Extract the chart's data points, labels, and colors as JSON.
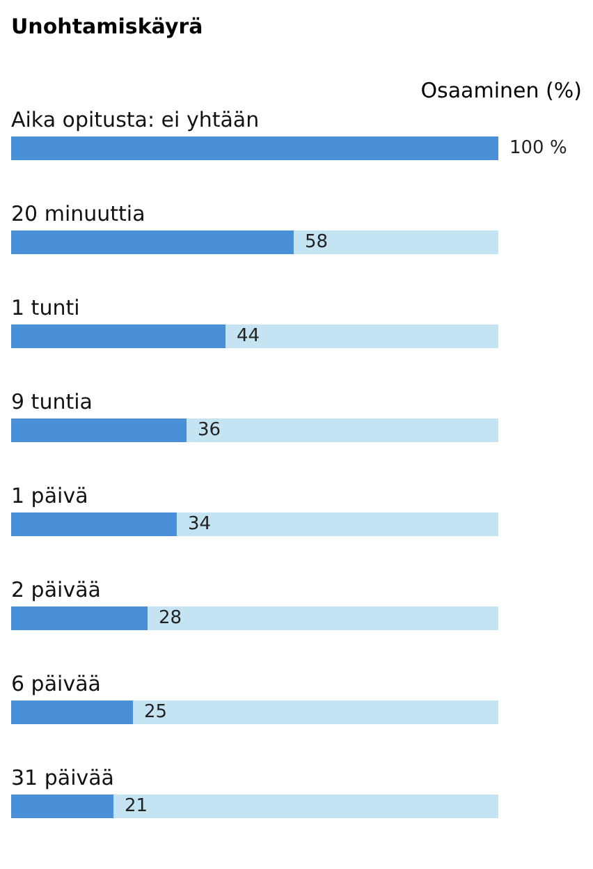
{
  "chart_data": {
    "type": "bar",
    "orientation": "horizontal",
    "stacked": true,
    "title": "Unohtamiskäyrä",
    "xlabel": "Osaaminen (%)",
    "categories": [
      "Aika opitusta: ei yhtään",
      "20 minuuttia",
      "1 tunti",
      "9 tuntia",
      "1 päivä",
      "2 päivää",
      "6 päivää",
      "31 päivää"
    ],
    "series": [
      {
        "color": "#4a90d9",
        "values": [
          100,
          58,
          44,
          36,
          34,
          28,
          25,
          21
        ],
        "value_labels": [
          "100 %",
          "58",
          "44",
          "36",
          "34",
          "28",
          "25",
          "21"
        ]
      },
      {
        "color": "#c4e4f4",
        "values": [
          0,
          42,
          56,
          64,
          66,
          72,
          75,
          79
        ]
      }
    ],
    "xlim": [
      0,
      100
    ],
    "tick_labels": false,
    "grid": false
  }
}
